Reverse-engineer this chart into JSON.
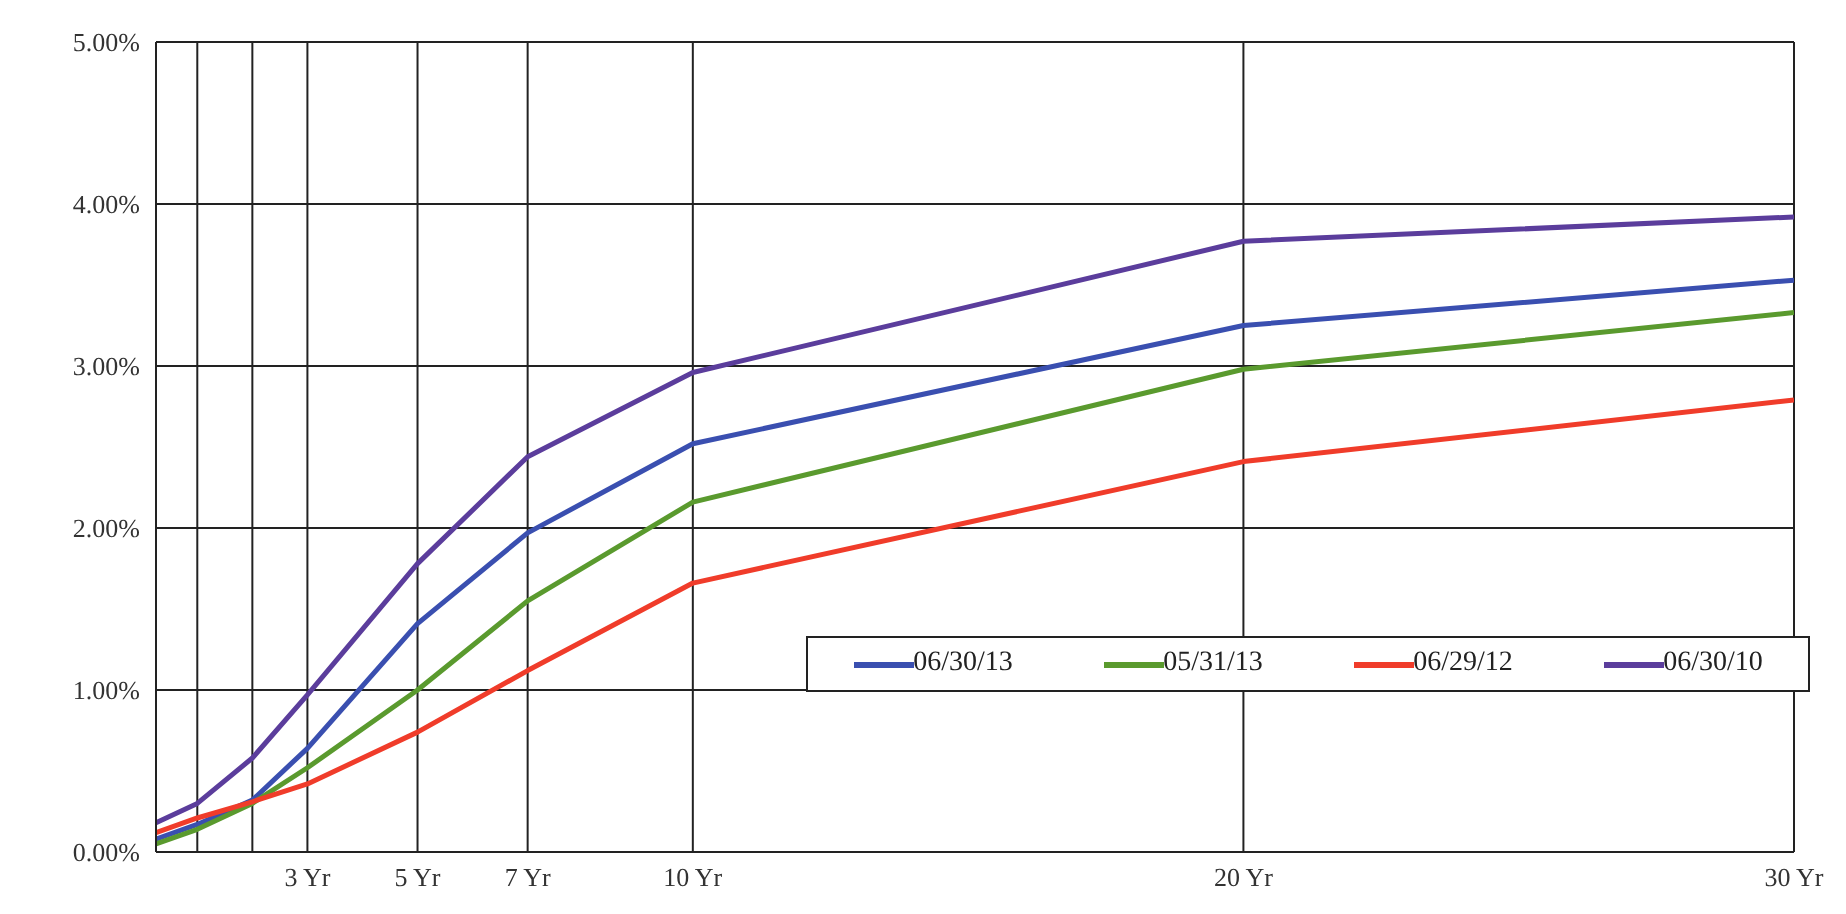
{
  "chart_data": {
    "type": "line",
    "x": [
      0.25,
      1,
      2,
      3,
      5,
      7,
      10,
      20,
      30
    ],
    "series": [
      {
        "name": "06/30/13",
        "color": "#3a4fb0",
        "values": [
          0.08,
          0.17,
          0.32,
          0.64,
          1.41,
          1.97,
          2.52,
          3.25,
          3.53
        ]
      },
      {
        "name": "05/31/13",
        "color": "#5a9a2e",
        "values": [
          0.05,
          0.14,
          0.3,
          0.52,
          1.0,
          1.55,
          2.16,
          2.98,
          3.33
        ]
      },
      {
        "name": "06/29/12",
        "color": "#f03c2a",
        "values": [
          0.12,
          0.21,
          0.31,
          0.42,
          0.74,
          1.12,
          1.66,
          2.41,
          2.79
        ]
      },
      {
        "name": "06/30/10",
        "color": "#5b3d9c",
        "values": [
          0.18,
          0.3,
          0.58,
          0.97,
          1.78,
          2.44,
          2.96,
          3.77,
          3.92
        ]
      }
    ],
    "xlim": [
      0.25,
      30
    ],
    "xticks": [
      {
        "value": 0.25,
        "label": null
      },
      {
        "value": 1,
        "label": null
      },
      {
        "value": 2,
        "label": null
      },
      {
        "value": 3,
        "label": "3 Yr"
      },
      {
        "value": 5,
        "label": "5 Yr"
      },
      {
        "value": 7,
        "label": "7 Yr"
      },
      {
        "value": 10,
        "label": "10 Yr"
      },
      {
        "value": 20,
        "label": "20 Yr"
      },
      {
        "value": 30,
        "label": "30 Yr"
      }
    ],
    "ylim": [
      0,
      5
    ],
    "yticks": [
      {
        "value": 0,
        "label": "0.00%"
      },
      {
        "value": 1,
        "label": "1.00%"
      },
      {
        "value": 2,
        "label": "2.00%"
      },
      {
        "value": 3,
        "label": "3.00%"
      },
      {
        "value": 4,
        "label": "4.00%"
      },
      {
        "value": 5,
        "label": "5.00%"
      }
    ],
    "grid": true,
    "legend": "bottom right",
    "marker": "none",
    "line_style": "solid"
  }
}
